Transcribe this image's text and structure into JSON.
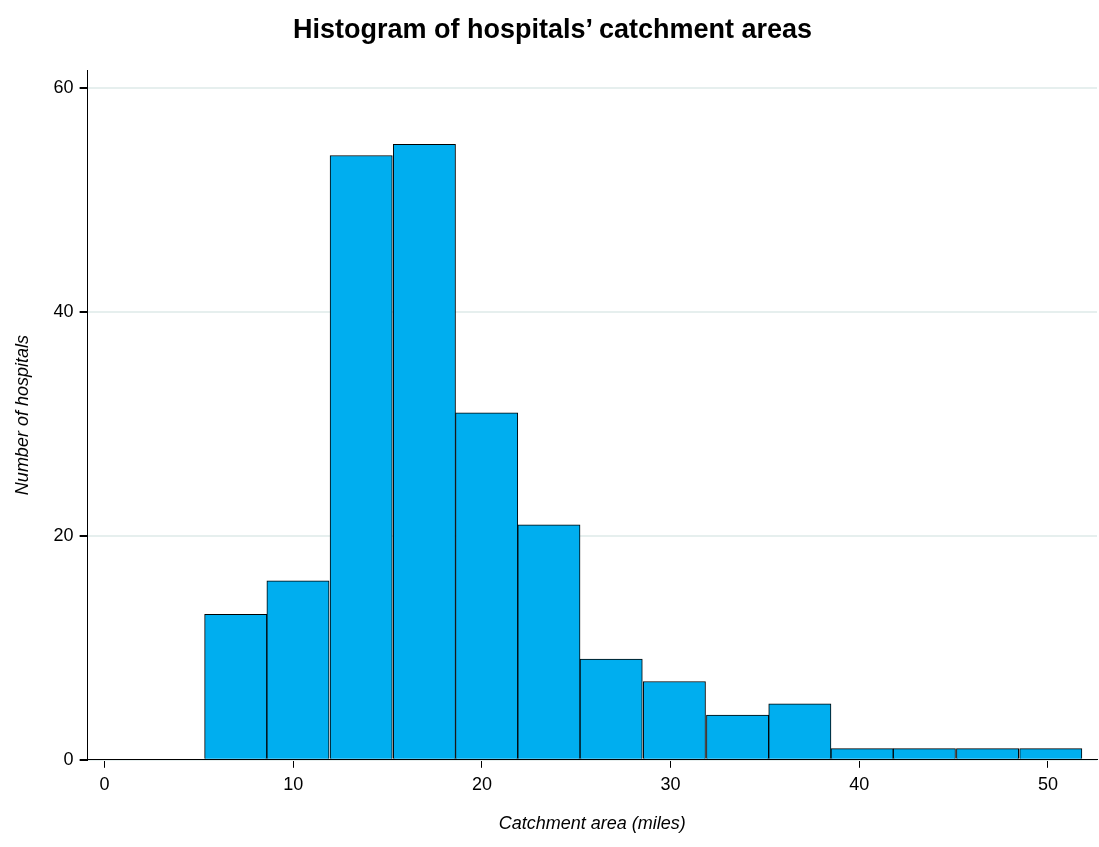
{
  "chart_data": {
    "type": "histogram",
    "title": "Histogram of hospitals’ catchment areas",
    "xlabel": "Catchment area (miles)",
    "ylabel": "Number of hospitals",
    "bins": [
      5.3,
      8.6,
      11.9,
      15.3,
      18.6,
      21.9,
      25.2,
      28.5,
      31.9,
      35.2,
      38.5,
      41.8,
      45.1,
      48.5,
      51.8
    ],
    "values": [
      13,
      16,
      54,
      55,
      31,
      21,
      9,
      7,
      4,
      5,
      1,
      1,
      1,
      1
    ],
    "color": "#00aeef",
    "xlim": [
      -0.9,
      52.6
    ],
    "xticks": [
      0,
      10,
      20,
      30,
      40,
      50
    ],
    "ylim": [
      0,
      61.6
    ],
    "yticks": [
      0,
      20,
      40,
      60
    ],
    "grid": "y"
  }
}
